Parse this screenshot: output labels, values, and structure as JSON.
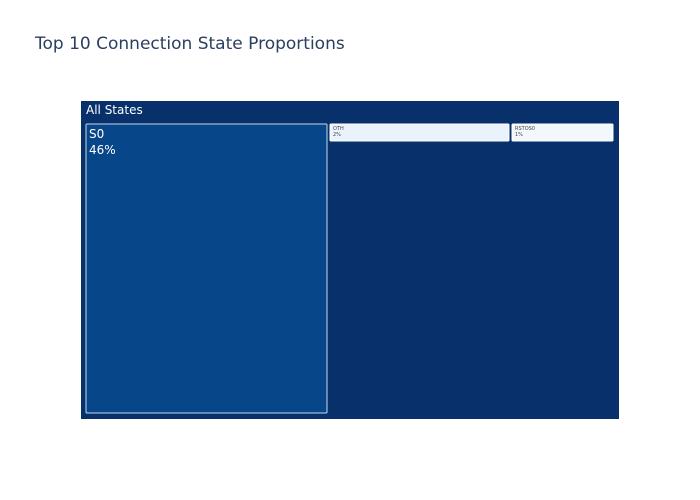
{
  "chart_data": {
    "type": "treemap",
    "title": "Top 10 Connection State Proportions",
    "root": {
      "label": "All States",
      "color": "#08306b"
    },
    "nodes": [
      {
        "label": "S0",
        "percent": "46%",
        "color": "#08468a",
        "text_color": "#ffffff"
      },
      {
        "label": "OTH",
        "percent": "2%",
        "color": "#eaf3fb",
        "text_color": "#444444"
      },
      {
        "label": "RSTOS0",
        "percent": "1%",
        "color": "#f3f8fd",
        "text_color": "#444444"
      }
    ]
  }
}
